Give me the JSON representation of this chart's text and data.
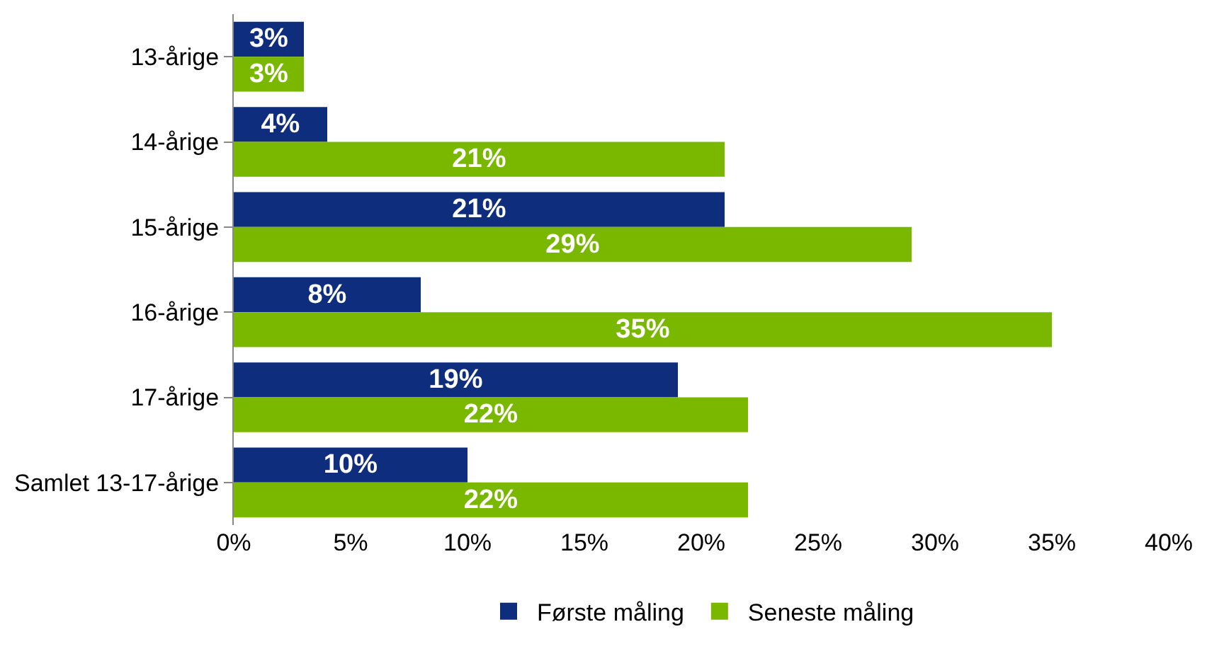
{
  "chart_data": {
    "type": "bar",
    "orientation": "horizontal",
    "categories": [
      "13-årige",
      "14-årige",
      "15-årige",
      "16-årige",
      "17-årige",
      "Samlet 13-17-årige"
    ],
    "series": [
      {
        "name": "Første måling",
        "color": "#0e2d7d",
        "values": [
          3,
          4,
          21,
          8,
          19,
          10
        ],
        "value_labels": [
          "3%",
          "4%",
          "21%",
          "8%",
          "19%",
          "10%"
        ]
      },
      {
        "name": "Seneste måling",
        "color": "#7ab800",
        "values": [
          3,
          21,
          29,
          35,
          22,
          22
        ],
        "value_labels": [
          "3%",
          "21%",
          "29%",
          "35%",
          "22%",
          "22%"
        ]
      }
    ],
    "xlim": [
      0,
      40
    ],
    "xticks": [
      {
        "value": 0,
        "label": "0%"
      },
      {
        "value": 5,
        "label": "5%"
      },
      {
        "value": 10,
        "label": "10%"
      },
      {
        "value": 15,
        "label": "15%"
      },
      {
        "value": 20,
        "label": "20%"
      },
      {
        "value": 25,
        "label": "25%"
      },
      {
        "value": 30,
        "label": "30%"
      },
      {
        "value": 35,
        "label": "35%"
      },
      {
        "value": 40,
        "label": "40%"
      }
    ],
    "legend": "bottom"
  }
}
